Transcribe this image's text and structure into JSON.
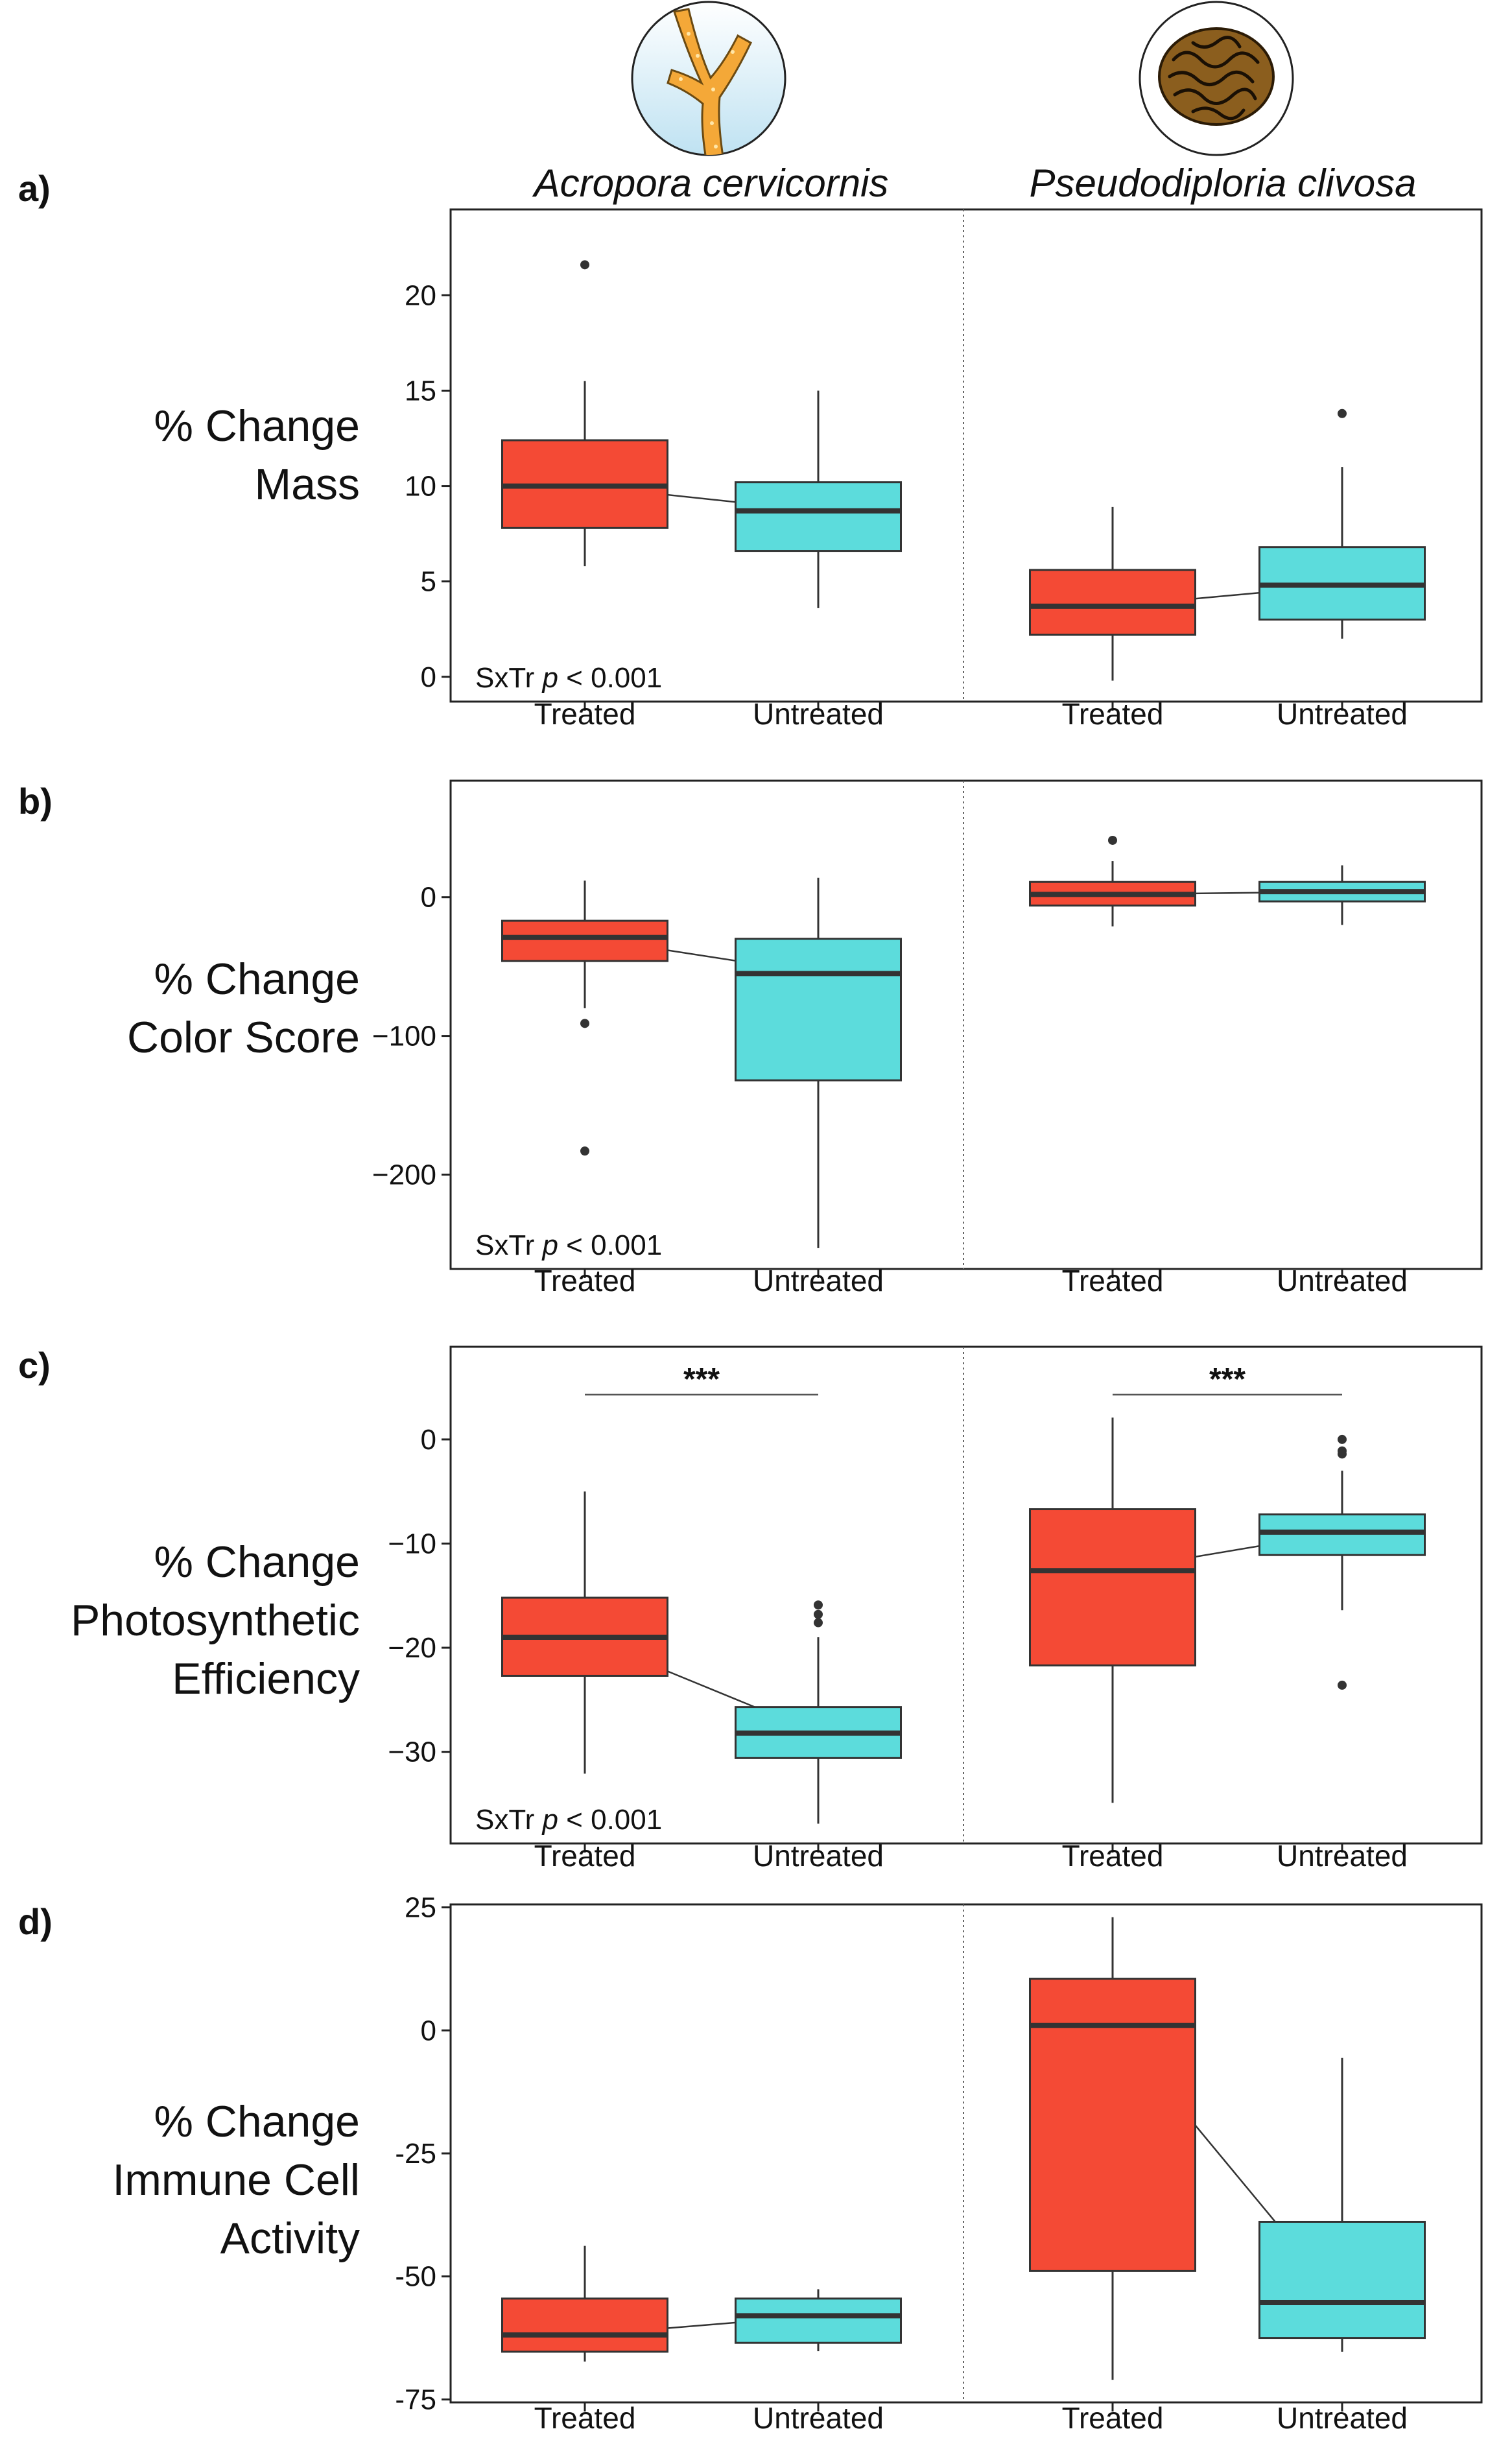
{
  "colors": {
    "treated": "#f44a35",
    "untreated": "#5cdcdc",
    "line": "#333333",
    "icon_bg": "#cfe9f5",
    "acropora": "#f4a838",
    "pseudodiploria": "#8b5e1e"
  },
  "species": [
    {
      "name": "Acropora cervicornis",
      "icon": "branching-coral-icon"
    },
    {
      "name": "Pseudodiploria clivosa",
      "icon": "brain-coral-icon"
    }
  ],
  "chart_data": [
    {
      "type": "box",
      "panel_label": "a)",
      "ylabel": "% Change Mass",
      "ylabel_lines": [
        "% Change",
        "Mass"
      ],
      "ylim": [
        -1.3,
        24.5
      ],
      "yticks": [
        0,
        5,
        10,
        15,
        20
      ],
      "ytick_labels": [
        "0",
        "5",
        "10",
        "15",
        "20"
      ],
      "categories": [
        "Treated",
        "Untreated"
      ],
      "annotation": {
        "prefix": "SxTr ",
        "italic": "p",
        "suffix": " < 0.001"
      },
      "significance": [],
      "groups": [
        {
          "species": "Acropora cervicornis",
          "boxes": [
            {
              "category": "Treated",
              "whisker_low": 5.8,
              "q1": 7.8,
              "median": 10.0,
              "q3": 12.4,
              "whisker_high": 15.5,
              "outliers": [
                21.6
              ]
            },
            {
              "category": "Untreated",
              "whisker_low": 3.6,
              "q1": 6.6,
              "median": 8.7,
              "q3": 10.2,
              "whisker_high": 15.0,
              "outliers": []
            }
          ]
        },
        {
          "species": "Pseudodiploria clivosa",
          "boxes": [
            {
              "category": "Treated",
              "whisker_low": -0.2,
              "q1": 2.2,
              "median": 3.7,
              "q3": 5.6,
              "whisker_high": 8.9,
              "outliers": []
            },
            {
              "category": "Untreated",
              "whisker_low": 2.0,
              "q1": 3.0,
              "median": 4.8,
              "q3": 6.8,
              "whisker_high": 11.0,
              "outliers": [
                13.8
              ]
            }
          ]
        }
      ]
    },
    {
      "type": "box",
      "panel_label": "b)",
      "ylabel": "% Change Color Score",
      "ylabel_lines": [
        "% Change",
        "Color Score"
      ],
      "ylim": [
        -268,
        84
      ],
      "yticks": [
        -200,
        -100,
        0
      ],
      "ytick_labels": [
        "−200",
        "−100",
        "0"
      ],
      "categories": [
        "Treated",
        "Untreated"
      ],
      "annotation": {
        "prefix": "SxTr ",
        "italic": "p",
        "suffix": " < 0.001"
      },
      "significance": [],
      "groups": [
        {
          "species": "Acropora cervicornis",
          "boxes": [
            {
              "category": "Treated",
              "whisker_low": -80,
              "q1": -46,
              "median": -29,
              "q3": -17,
              "whisker_high": 12,
              "outliers": [
                -91,
                -183
              ]
            },
            {
              "category": "Untreated",
              "whisker_low": -253,
              "q1": -132,
              "median": -55,
              "q3": -30,
              "whisker_high": 14,
              "outliers": []
            }
          ]
        },
        {
          "species": "Pseudodiploria clivosa",
          "boxes": [
            {
              "category": "Treated",
              "whisker_low": -21,
              "q1": -6,
              "median": 2,
              "q3": 11,
              "whisker_high": 26,
              "outliers": [
                41
              ]
            },
            {
              "category": "Untreated",
              "whisker_low": -20,
              "q1": -3,
              "median": 4,
              "q3": 11,
              "whisker_high": 23,
              "outliers": []
            }
          ]
        }
      ]
    },
    {
      "type": "box",
      "panel_label": "c)",
      "ylabel": "% Change Photosynthetic Efficiency",
      "ylabel_lines": [
        "% Change",
        "Photosynthetic",
        "Efficiency"
      ],
      "ylim": [
        -38.8,
        8.9
      ],
      "yticks": [
        -30,
        -20,
        -10,
        0
      ],
      "ytick_labels": [
        "−30",
        "−20",
        "−10",
        "0"
      ],
      "categories": [
        "Treated",
        "Untreated"
      ],
      "annotation": {
        "prefix": "SxTr ",
        "italic": "p",
        "suffix": " < 0.001"
      },
      "significance": [
        {
          "group": 0,
          "text": "***",
          "y": 4.3
        },
        {
          "group": 1,
          "text": "***",
          "y": 4.3
        }
      ],
      "groups": [
        {
          "species": "Acropora cervicornis",
          "boxes": [
            {
              "category": "Treated",
              "whisker_low": -32.1,
              "q1": -22.7,
              "median": -19.0,
              "q3": -15.2,
              "whisker_high": -5.0,
              "outliers": []
            },
            {
              "category": "Untreated",
              "whisker_low": -36.9,
              "q1": -30.6,
              "median": -28.2,
              "q3": -25.7,
              "whisker_high": -19.0,
              "outliers": [
                -15.9,
                -16.8,
                -17.6
              ]
            }
          ]
        },
        {
          "species": "Pseudodiploria clivosa",
          "boxes": [
            {
              "category": "Treated",
              "whisker_low": -34.9,
              "q1": -21.7,
              "median": -12.6,
              "q3": -6.7,
              "whisker_high": 2.1,
              "outliers": []
            },
            {
              "category": "Untreated",
              "whisker_low": -16.4,
              "q1": -11.1,
              "median": -8.9,
              "q3": -7.2,
              "whisker_high": -3.0,
              "outliers": [
                0.0,
                -1.1,
                -1.4,
                -23.6
              ]
            }
          ]
        }
      ]
    },
    {
      "type": "box",
      "panel_label": "d)",
      "ylabel": "% Change Immune Cell Activity",
      "ylabel_lines": [
        "% Change",
        "Immune Cell",
        "Activity"
      ],
      "ylim": [
        -75.6,
        25.6
      ],
      "yticks": [
        -75,
        -50,
        -25,
        0,
        25
      ],
      "ytick_labels": [
        "-75",
        "-50",
        "-25",
        "0",
        "25"
      ],
      "categories": [
        "Treated",
        "Untreated"
      ],
      "annotation": null,
      "significance": [],
      "groups": [
        {
          "species": "Acropora cervicornis",
          "boxes": [
            {
              "category": "Treated",
              "whisker_low": -67.3,
              "q1": -65.3,
              "median": -61.9,
              "q3": -54.5,
              "whisker_high": -43.8,
              "outliers": []
            },
            {
              "category": "Untreated",
              "whisker_low": -65.2,
              "q1": -63.5,
              "median": -58.0,
              "q3": -54.5,
              "whisker_high": -52.6,
              "outliers": []
            }
          ]
        },
        {
          "species": "Pseudodiploria clivosa",
          "boxes": [
            {
              "category": "Treated",
              "whisker_low": -71.0,
              "q1": -48.9,
              "median": 1.0,
              "q3": 10.5,
              "whisker_high": 23.0,
              "outliers": []
            },
            {
              "category": "Untreated",
              "whisker_low": -65.3,
              "q1": -62.5,
              "median": -55.3,
              "q3": -38.9,
              "whisker_high": -5.6,
              "outliers": []
            }
          ]
        }
      ]
    }
  ]
}
